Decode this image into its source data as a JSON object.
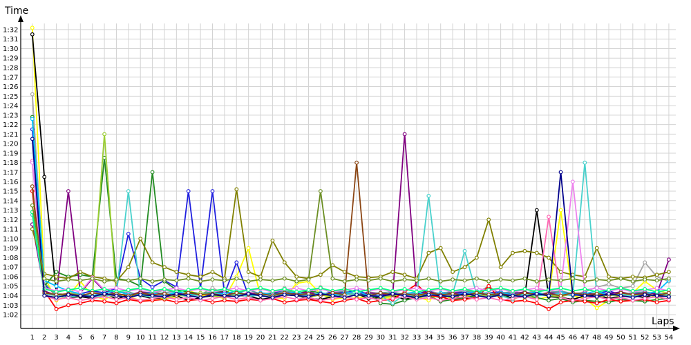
{
  "chart_data": {
    "type": "line",
    "title": "",
    "xlabel": "Laps",
    "ylabel": "Time",
    "grid": true,
    "legend": "none",
    "x": [
      1,
      2,
      3,
      4,
      5,
      6,
      7,
      8,
      9,
      10,
      11,
      12,
      13,
      14,
      15,
      16,
      17,
      18,
      19,
      20,
      21,
      22,
      23,
      24,
      25,
      26,
      27,
      28,
      29,
      30,
      31,
      32,
      33,
      34,
      35,
      36,
      37,
      38,
      39,
      40,
      41,
      42,
      43,
      44,
      45,
      46,
      47,
      48,
      49,
      50,
      51,
      52,
      53,
      54
    ],
    "x_tick_labels": [
      "1",
      "2",
      "3",
      "4",
      "5",
      "6",
      "7",
      "8",
      "9",
      "10",
      "11",
      "12",
      "13",
      "14",
      "15",
      "16",
      "17",
      "18",
      "19",
      "20",
      "21",
      "22",
      "23",
      "24",
      "25",
      "26",
      "27",
      "28",
      "29",
      "30",
      "31",
      "32",
      "33",
      "34",
      "35",
      "36",
      "37",
      "38",
      "39",
      "40",
      "41",
      "42",
      "43",
      "44",
      "45",
      "46",
      "47",
      "48",
      "49",
      "50",
      "51",
      "52",
      "53",
      "54"
    ],
    "y_tick_labels": [
      "1:02",
      "1:03",
      "1:04",
      "1:05",
      "1:06",
      "1:07",
      "1:08",
      "1:09",
      "1:10",
      "1:11",
      "1:12",
      "1:13",
      "1:14",
      "1:15",
      "1:16",
      "1:17",
      "1:18",
      "1:19",
      "1:20",
      "1:21",
      "1:22",
      "1:23",
      "1:24",
      "1:25",
      "1:26",
      "1:27",
      "1:28",
      "1:29",
      "1:30",
      "1:31",
      "1:32"
    ],
    "y_unit": "seconds",
    "ylim": [
      61,
      93
    ],
    "series": [
      {
        "color": "#ffff00",
        "values": [
          92.2,
          66.0,
          63.5,
          64.0,
          65.5,
          64.0,
          63.6,
          64.2,
          63.9,
          63.5,
          63.5,
          63.7,
          63.8,
          64.6,
          64.0,
          64.0,
          63.7,
          66.0,
          69.0,
          64.0,
          63.8,
          63.7,
          65.3,
          65.5,
          64.2,
          63.6,
          63.8,
          63.7,
          64.0,
          63.7,
          63.8,
          64.3,
          63.9,
          63.5,
          64.2,
          63.6,
          63.8,
          64.4,
          64.0,
          64.2,
          63.5,
          64.3,
          63.6,
          63.9,
          73.0,
          64.0,
          63.7,
          62.7,
          63.5,
          63.9,
          64.3,
          65.5,
          64.6,
          64.2
        ]
      },
      {
        "color": "#000000",
        "values": [
          91.5,
          76.5,
          64.2,
          63.8,
          63.9,
          63.7,
          64.4,
          63.6,
          64.1,
          64.0,
          63.7,
          63.8,
          64.0,
          63.5,
          63.8,
          64.0,
          63.9,
          64.0,
          64.0,
          63.6,
          63.8,
          64.1,
          64.0,
          63.7,
          63.6,
          63.9,
          64.1,
          64.2,
          63.7,
          63.8,
          64.0,
          63.6,
          63.9,
          64.1,
          63.8,
          64.0,
          63.7,
          64.0,
          63.9,
          64.2,
          63.7,
          64.0,
          73.0,
          63.9,
          63.8,
          63.6,
          64.0,
          64.1,
          63.7,
          63.9,
          64.0,
          63.8,
          64.2,
          63.9
        ]
      },
      {
        "color": "#a6a6a6",
        "values": [
          85.2,
          65.0,
          64.3,
          64.0,
          64.2,
          64.5,
          64.1,
          63.9,
          64.3,
          64.1,
          64.2,
          64.6,
          64.4,
          64.0,
          64.1,
          64.8,
          64.2,
          64.5,
          64.0,
          64.3,
          64.2,
          64.8,
          64.1,
          64.0,
          64.9,
          64.2,
          64.3,
          64.1,
          64.4,
          64.2,
          64.0,
          64.3,
          64.1,
          64.5,
          64.2,
          64.0,
          64.6,
          64.3,
          65.0,
          64.1,
          64.4,
          64.2,
          64.6,
          64.5,
          64.3,
          64.2,
          64.4,
          64.9,
          65.2,
          64.8,
          65.0,
          67.5,
          66.0,
          65.5
        ]
      },
      {
        "color": "#1f1fdf",
        "values": [
          81.5,
          65.2,
          64.0,
          63.8,
          64.2,
          64.5,
          64.3,
          64.8,
          70.5,
          65.8,
          64.9,
          65.6,
          64.9,
          75.0,
          64.8,
          75.0,
          64.2,
          67.5,
          64.0,
          64.1,
          64.3,
          64.5,
          64.2,
          64.3,
          64.1,
          64.4,
          64.3,
          64.6,
          64.1,
          64.0,
          64.3,
          64.1,
          64.2,
          64.5,
          64.0,
          64.4,
          64.3,
          64.2,
          64.3,
          64.4,
          64.1,
          64.2,
          64.3,
          64.1,
          64.3,
          64.2,
          64.0,
          64.2,
          64.5,
          64.1,
          64.3,
          64.2,
          64.4,
          63.9
        ]
      },
      {
        "color": "#5f9ea0",
        "values": [
          82.8,
          65.4,
          63.9,
          64.2,
          64.3,
          63.8,
          64.1,
          64.3,
          64.4,
          64.0,
          64.2,
          64.3,
          64.5,
          64.1,
          64.2,
          64.4,
          64.0,
          64.3,
          64.6,
          64.2,
          64.1,
          64.5,
          64.3,
          64.2,
          64.0,
          64.3,
          64.5,
          64.1,
          64.2,
          64.3,
          64.4,
          64.1,
          64.2,
          64.0,
          64.3,
          64.4,
          64.5,
          64.2,
          64.0,
          64.3,
          64.4,
          64.2,
          64.1,
          64.3,
          64.5,
          64.2,
          64.0,
          64.3,
          64.2,
          64.1,
          64.3,
          64.4,
          64.2,
          64.3
        ]
      },
      {
        "color": "#228b22",
        "values": [
          82.8,
          65.0,
          66.5,
          66.0,
          66.2,
          66.0,
          78.5,
          65.8,
          65.6,
          65.0,
          77.0,
          65.5,
          64.6,
          64.4,
          64.2,
          64.3,
          64.5,
          64.1,
          64.2,
          64.0,
          64.3,
          64.1,
          64.2,
          64.5,
          64.3,
          64.1,
          64.2,
          64.0,
          64.3,
          63.2,
          63.1,
          63.5,
          63.8,
          64.0,
          63.4,
          63.6,
          63.8,
          64.0,
          64.2,
          63.9,
          64.1,
          64.0,
          63.8,
          63.5,
          63.7,
          63.3,
          63.5,
          63.4,
          63.3,
          63.6,
          63.5,
          63.4,
          63.6,
          63.7
        ]
      },
      {
        "color": "#ff0000",
        "values": [
          75.0,
          64.5,
          62.6,
          63.0,
          63.2,
          63.5,
          63.4,
          63.2,
          63.6,
          63.4,
          63.5,
          63.6,
          63.3,
          63.5,
          63.6,
          63.3,
          63.5,
          63.4,
          63.6,
          63.5,
          63.7,
          63.3,
          63.5,
          63.6,
          63.4,
          63.2,
          63.5,
          63.7,
          63.3,
          63.5,
          63.6,
          64.4,
          65.2,
          64.0,
          63.9,
          63.5,
          63.6,
          63.8,
          65.0,
          63.6,
          63.4,
          63.5,
          63.2,
          62.6,
          63.3,
          63.5,
          63.4,
          63.2,
          63.6,
          63.4,
          63.5,
          63.6,
          63.3,
          63.5
        ]
      },
      {
        "color": "#800080",
        "values": [
          71.5,
          64.5,
          64.0,
          75.0,
          64.3,
          65.8,
          64.5,
          64.2,
          64.0,
          64.4,
          64.3,
          64.1,
          64.2,
          64.3,
          64.1,
          64.2,
          64.4,
          64.0,
          64.3,
          64.2,
          64.1,
          64.3,
          64.2,
          64.4,
          64.0,
          64.3,
          64.2,
          64.1,
          64.3,
          64.2,
          64.0,
          81.0,
          64.2,
          64.4,
          64.1,
          64.3,
          64.2,
          64.0,
          64.3,
          64.1,
          64.2,
          64.4,
          64.1,
          64.3,
          64.2,
          64.0,
          64.3,
          64.1,
          64.2,
          64.4,
          64.1,
          64.3,
          64.2,
          67.8
        ]
      },
      {
        "color": "#9acd32",
        "values": [
          75.5,
          64.0,
          63.8,
          64.2,
          64.1,
          63.9,
          81.0,
          64.0,
          63.8,
          64.2,
          64.0,
          63.7,
          64.1,
          63.9,
          64.3,
          64.0,
          63.8,
          64.1,
          64.0,
          64.3,
          63.9,
          64.2,
          64.0,
          63.8,
          64.1,
          63.9,
          64.2,
          64.0,
          64.1,
          63.8,
          64.0,
          64.2,
          63.9,
          64.1,
          64.0,
          63.8,
          64.2,
          64.1,
          63.9,
          64.0,
          64.2,
          63.8,
          64.1,
          64.0,
          63.9,
          64.2,
          64.0,
          63.8,
          64.1,
          63.9,
          64.0,
          64.2,
          63.8,
          64.1
        ]
      },
      {
        "color": "#808000",
        "values": [
          71.0,
          66.3,
          66.0,
          65.8,
          66.5,
          66.0,
          65.8,
          65.5,
          67.0,
          70.0,
          67.5,
          67.0,
          66.5,
          66.2,
          66.0,
          66.5,
          65.8,
          75.2,
          66.5,
          66.0,
          69.8,
          67.5,
          66.0,
          65.8,
          66.2,
          67.2,
          66.5,
          66.0,
          65.9,
          66.0,
          66.5,
          66.2,
          65.8,
          68.5,
          69.0,
          66.5,
          67.0,
          68.0,
          72.0,
          67.0,
          68.5,
          68.7,
          68.5,
          68.0,
          66.5,
          66.2,
          66.0,
          69.0,
          66.0,
          65.8,
          66.0,
          65.9,
          66.2,
          66.5
        ]
      },
      {
        "color": "#00bfff",
        "values": [
          82.6,
          65.6,
          65.0,
          64.5,
          64.2,
          64.0,
          64.3,
          64.5,
          64.1,
          64.2,
          64.3,
          64.0,
          64.4,
          64.2,
          64.1,
          64.3,
          64.2,
          64.5,
          64.0,
          64.3,
          64.1,
          64.2,
          64.4,
          64.0,
          64.3,
          64.1,
          64.2,
          64.5,
          64.0,
          64.3,
          64.1,
          64.2,
          64.4,
          64.0,
          64.3,
          64.1,
          64.2,
          64.5,
          64.0,
          64.3,
          64.1,
          64.2,
          64.4,
          64.0,
          64.3,
          64.1,
          64.2,
          64.5,
          64.0,
          64.3,
          64.1,
          64.2,
          64.4,
          65.6
        ]
      },
      {
        "color": "#48d1cc",
        "values": [
          72.5,
          64.2,
          64.0,
          63.8,
          64.1,
          64.0,
          63.9,
          64.2,
          75.0,
          64.1,
          63.8,
          64.0,
          64.2,
          63.9,
          64.1,
          64.3,
          64.0,
          64.2,
          63.9,
          64.1,
          64.0,
          64.2,
          64.1,
          63.9,
          64.3,
          64.0,
          64.1,
          64.2,
          63.9,
          64.0,
          63.2,
          64.1,
          64.0,
          74.5,
          64.0,
          64.2,
          68.7,
          64.1,
          64.3,
          64.0,
          63.6,
          64.2,
          64.0,
          64.1,
          64.2,
          64.0,
          78.0,
          64.1,
          64.0,
          64.2,
          63.9,
          64.1,
          64.0,
          64.2
        ]
      },
      {
        "color": "#ff69b4",
        "values": [
          78.2,
          64.0,
          63.6,
          63.8,
          63.5,
          63.7,
          63.9,
          63.6,
          63.8,
          63.5,
          63.7,
          63.9,
          63.6,
          63.8,
          63.5,
          63.7,
          63.9,
          63.6,
          63.8,
          63.5,
          63.7,
          63.9,
          63.6,
          63.8,
          63.5,
          63.7,
          63.9,
          63.6,
          63.8,
          63.5,
          63.7,
          63.9,
          63.6,
          63.8,
          63.5,
          63.7,
          63.9,
          63.6,
          63.8,
          63.5,
          63.7,
          63.9,
          63.6,
          72.3,
          63.8,
          63.5,
          63.7,
          63.9,
          63.6,
          63.8,
          63.5,
          63.7,
          63.9,
          63.6
        ]
      },
      {
        "color": "#ee82ee",
        "values": [
          78.0,
          64.8,
          64.5,
          64.7,
          64.4,
          65.9,
          64.6,
          64.8,
          64.5,
          64.7,
          64.4,
          64.6,
          64.8,
          64.5,
          64.7,
          64.4,
          64.6,
          64.8,
          64.5,
          64.7,
          64.4,
          64.6,
          64.8,
          64.5,
          64.7,
          64.4,
          64.6,
          64.8,
          64.5,
          64.7,
          64.4,
          64.6,
          64.8,
          64.5,
          64.7,
          64.4,
          64.6,
          64.8,
          64.5,
          64.7,
          64.4,
          64.6,
          64.8,
          64.5,
          64.7,
          76.0,
          64.6,
          64.8,
          64.5,
          64.7,
          64.4,
          64.6,
          64.8,
          64.5
        ]
      },
      {
        "color": "#00ff7f",
        "values": [
          72.8,
          64.7,
          64.4,
          64.6,
          64.8,
          64.5,
          64.7,
          64.4,
          64.6,
          64.8,
          64.5,
          64.7,
          64.4,
          64.6,
          64.8,
          64.5,
          64.7,
          64.4,
          64.6,
          64.8,
          64.5,
          64.7,
          64.4,
          64.6,
          64.8,
          64.5,
          64.7,
          64.4,
          64.6,
          64.8,
          64.5,
          64.7,
          64.4,
          64.6,
          64.8,
          64.5,
          64.7,
          64.4,
          64.6,
          64.8,
          64.5,
          64.7,
          64.4,
          64.6,
          64.8,
          64.5,
          64.7,
          64.4,
          64.6,
          64.8,
          64.5,
          64.7,
          64.4,
          64.6
        ]
      },
      {
        "color": "#8b4513",
        "values": [
          75.5,
          64.3,
          64.1,
          64.2,
          64.0,
          64.3,
          64.1,
          64.2,
          64.0,
          64.3,
          64.1,
          64.2,
          64.0,
          64.3,
          64.1,
          64.2,
          64.0,
          64.3,
          64.1,
          64.2,
          64.0,
          64.3,
          64.1,
          64.2,
          64.0,
          64.3,
          64.1,
          78.0,
          64.0,
          64.3,
          64.1,
          64.2,
          64.0,
          64.3,
          64.1,
          64.2,
          64.0,
          64.3,
          64.1,
          64.2,
          64.0,
          64.3,
          64.1,
          64.2,
          64.0,
          64.3,
          64.1,
          64.2,
          64.0,
          64.3,
          64.1,
          64.2,
          64.0,
          64.3
        ]
      },
      {
        "color": "#00008b",
        "values": [
          80.5,
          64.0,
          63.8,
          64.1,
          64.0,
          63.9,
          64.2,
          64.0,
          63.8,
          64.1,
          64.0,
          63.9,
          64.2,
          64.0,
          63.8,
          64.1,
          64.0,
          63.9,
          64.2,
          64.0,
          63.8,
          64.1,
          64.0,
          63.9,
          64.2,
          64.0,
          63.8,
          64.1,
          64.0,
          63.9,
          64.2,
          64.0,
          63.8,
          64.1,
          64.0,
          63.9,
          64.2,
          64.0,
          63.8,
          64.1,
          64.0,
          63.9,
          64.2,
          64.0,
          77.0,
          64.1,
          64.0,
          63.9,
          64.2,
          64.0,
          63.8,
          64.1,
          64.0,
          63.9
        ]
      },
      {
        "color": "#6b8e23",
        "values": [
          73.5,
          65.8,
          65.5,
          65.7,
          65.6,
          65.8,
          65.5,
          65.7,
          65.6,
          65.8,
          65.5,
          65.7,
          65.6,
          65.8,
          65.5,
          65.7,
          65.6,
          65.8,
          65.5,
          65.7,
          65.6,
          65.8,
          65.5,
          65.7,
          75.0,
          65.8,
          65.5,
          65.7,
          65.6,
          65.8,
          65.5,
          65.7,
          65.6,
          65.8,
          65.5,
          65.7,
          65.6,
          65.8,
          65.5,
          65.7,
          65.6,
          65.8,
          65.5,
          65.7,
          65.6,
          65.8,
          65.5,
          65.7,
          65.6,
          65.8,
          65.5,
          65.7,
          65.6,
          65.8
        ]
      }
    ]
  }
}
